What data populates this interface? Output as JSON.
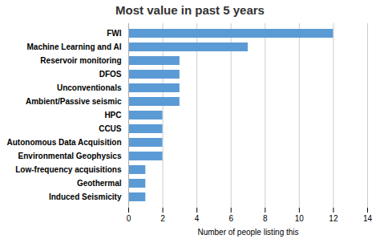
{
  "chart_data": {
    "type": "bar",
    "orientation": "horizontal",
    "title": "Most value in past 5 years",
    "xlabel": "Number of people listing this",
    "categories": [
      "Induced Seismicity",
      "Geothermal",
      "Low-frequency acquisitions",
      "Environmental Geophysics",
      "Autonomous Data Acquisition",
      "CCUS",
      "HPC",
      "Ambient/Passive seismic",
      "Unconventionals",
      "DFOS",
      "Reservoir monitoring",
      "Machine Learning and AI",
      "FWI"
    ],
    "values": [
      1,
      1,
      1,
      2,
      2,
      2,
      2,
      3,
      3,
      3,
      3,
      7,
      12
    ],
    "color": "#5b9bd5",
    "xlim": [
      0,
      14
    ],
    "xticks": [
      0,
      2,
      4,
      6,
      8,
      10,
      12,
      14
    ],
    "grid": true
  }
}
